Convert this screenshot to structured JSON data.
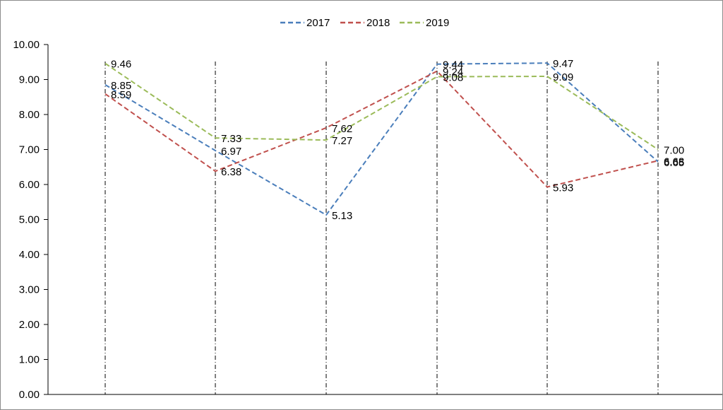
{
  "chart_data": {
    "type": "line",
    "title": "",
    "xlabel": "",
    "ylabel": "",
    "ylim": [
      0,
      10
    ],
    "y_ticks": [
      "0.00",
      "1.00",
      "2.00",
      "3.00",
      "4.00",
      "5.00",
      "6.00",
      "7.00",
      "8.00",
      "9.00",
      "10.00"
    ],
    "categories": [
      "",
      "",
      "",
      "",
      "",
      ""
    ],
    "legend_position": "top",
    "grid": "vertical dash-dot drop lines at each category",
    "series": [
      {
        "name": "2017",
        "color": "#4a7ebb",
        "values": [
          8.85,
          6.97,
          5.13,
          9.44,
          9.47,
          6.65
        ],
        "labels": [
          "8.85",
          "6.97",
          "5.13",
          "9.44",
          "9.47",
          "6.65"
        ]
      },
      {
        "name": "2018",
        "color": "#c0504d",
        "values": [
          8.59,
          6.38,
          7.62,
          9.24,
          5.93,
          6.68
        ],
        "labels": [
          "8.59",
          "6.38",
          "7.62",
          "9.24",
          "5.93",
          "6.68"
        ]
      },
      {
        "name": "2019",
        "color": "#9bbb59",
        "values": [
          9.46,
          7.33,
          7.27,
          9.08,
          9.09,
          7.0
        ],
        "labels": [
          "9.46",
          "7.33",
          "7.27",
          "9.08",
          "9.09",
          "7.00"
        ]
      }
    ]
  }
}
